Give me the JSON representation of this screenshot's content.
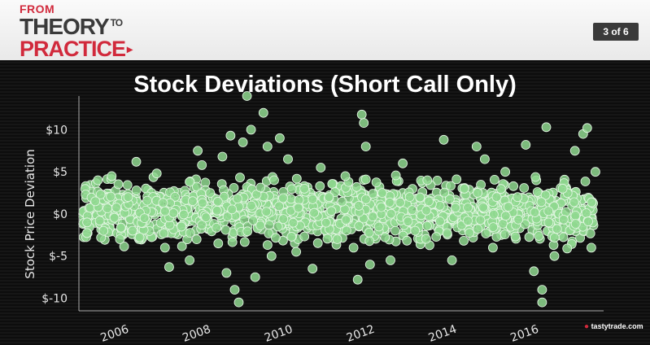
{
  "header": {
    "brand_line1": "FROM",
    "brand_line2_main": "THEORY",
    "brand_line2_small": "TO",
    "brand_line3": "PRACTICE",
    "page_indicator": "3 of 6"
  },
  "watermark": "tastytrade.com",
  "colors": {
    "accent": "#d12a3c",
    "points": "#8fd88f",
    "points_edge": "#e6f7e6"
  },
  "chart_data": {
    "type": "scatter",
    "title": "Stock Deviations (Short Call Only)",
    "xlabel": "",
    "ylabel": "Stock Price Deviation",
    "x_ticks": [
      "2006",
      "2008",
      "2010",
      "2012",
      "2014",
      "2016"
    ],
    "y_ticks": [
      "$10",
      "$5",
      "$0",
      "$-5",
      "$-10"
    ],
    "xlim": [
      2005.1,
      2017.9
    ],
    "ylim": [
      -11.5,
      14
    ],
    "grid": false,
    "approx_band": {
      "x": [
        2005.2,
        2017.7
      ],
      "y": [
        -4.5,
        5
      ]
    },
    "series": [
      {
        "points": [
          [
            2005.3,
            -1
          ],
          [
            2005.5,
            1.5
          ],
          [
            2005.7,
            -2
          ],
          [
            2005.9,
            4.5
          ],
          [
            2006.1,
            -3
          ],
          [
            2006.3,
            2
          ],
          [
            2006.5,
            6.2
          ],
          [
            2006.7,
            -0.5
          ],
          [
            2007.0,
            4.8
          ],
          [
            2007.2,
            -4
          ],
          [
            2007.3,
            -6.3
          ],
          [
            2007.6,
            -1.5
          ],
          [
            2007.8,
            3.8
          ],
          [
            2007.8,
            -5.5
          ],
          [
            2008.0,
            7.5
          ],
          [
            2008.1,
            5.8
          ],
          [
            2008.3,
            2.5
          ],
          [
            2008.5,
            -3.5
          ],
          [
            2008.6,
            6.8
          ],
          [
            2008.7,
            -7
          ],
          [
            2008.8,
            9.3
          ],
          [
            2008.9,
            -9
          ],
          [
            2009.0,
            -10.5
          ],
          [
            2009.1,
            8.5
          ],
          [
            2009.2,
            14
          ],
          [
            2009.3,
            10
          ],
          [
            2009.4,
            -7.5
          ],
          [
            2009.6,
            12
          ],
          [
            2009.7,
            8
          ],
          [
            2009.8,
            -5
          ],
          [
            2010.0,
            9
          ],
          [
            2010.2,
            6.5
          ],
          [
            2010.4,
            -4.5
          ],
          [
            2010.6,
            3
          ],
          [
            2010.8,
            -6.5
          ],
          [
            2011.0,
            5.5
          ],
          [
            2011.2,
            2
          ],
          [
            2011.4,
            -3
          ],
          [
            2011.6,
            4.5
          ],
          [
            2011.8,
            -4
          ],
          [
            2011.9,
            -7.8
          ],
          [
            2012.0,
            11.8
          ],
          [
            2012.05,
            10.8
          ],
          [
            2012.1,
            8
          ],
          [
            2012.2,
            -6
          ],
          [
            2012.5,
            2.5
          ],
          [
            2012.7,
            -5.5
          ],
          [
            2013.0,
            6
          ],
          [
            2013.3,
            -2
          ],
          [
            2013.6,
            4
          ],
          [
            2014.0,
            8.8
          ],
          [
            2014.2,
            -5.5
          ],
          [
            2014.5,
            3
          ],
          [
            2014.8,
            8
          ],
          [
            2015.0,
            6.5
          ],
          [
            2015.2,
            -4
          ],
          [
            2015.5,
            5
          ],
          [
            2015.8,
            2
          ],
          [
            2016.0,
            8.2
          ],
          [
            2016.2,
            -6.8
          ],
          [
            2016.4,
            -9
          ],
          [
            2016.4,
            -10.5
          ],
          [
            2016.5,
            10.3
          ],
          [
            2016.7,
            -5
          ],
          [
            2016.9,
            3
          ],
          [
            2017.2,
            7.5
          ],
          [
            2017.4,
            9.5
          ],
          [
            2017.5,
            10.2
          ],
          [
            2017.6,
            -4
          ],
          [
            2017.7,
            5
          ]
        ]
      }
    ]
  }
}
